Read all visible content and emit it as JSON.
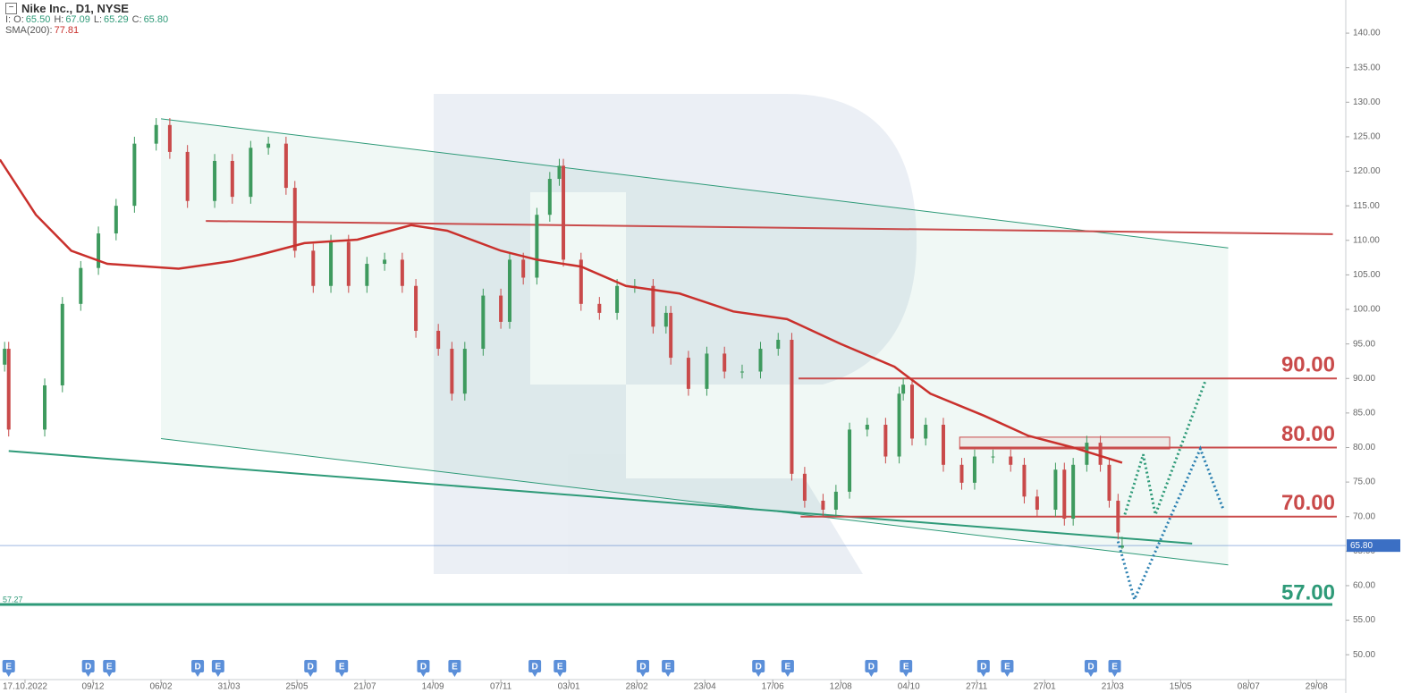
{
  "header": {
    "symbol": "Nike Inc., D1, NYSE",
    "ohlc": [
      {
        "label": "I: O:",
        "value": "65.50"
      },
      {
        "label": "H:",
        "value": "67.09"
      },
      {
        "label": "L:",
        "value": "65.29"
      },
      {
        "label": "C:",
        "value": "65.80"
      }
    ],
    "sma_label": "SMA(200):"
  },
  "chart_data": {
    "type": "candlestick",
    "xlim": [
      -0.368,
      19.43
    ],
    "xticks": [
      {
        "value": 0,
        "label": "17.10.2022"
      },
      {
        "value": 1,
        "label": "09/12"
      },
      {
        "value": 2,
        "label": "06/02"
      },
      {
        "value": 3,
        "label": "31/03"
      },
      {
        "value": 4,
        "label": "25/05"
      },
      {
        "value": 5,
        "label": "21/07"
      },
      {
        "value": 6,
        "label": "14/09"
      },
      {
        "value": 7,
        "label": "07/11"
      },
      {
        "value": 8,
        "label": "03/01"
      },
      {
        "value": 9,
        "label": "28/02"
      },
      {
        "value": 10,
        "label": "23/04"
      },
      {
        "value": 11,
        "label": "17/06"
      },
      {
        "value": 12,
        "label": "12/08"
      },
      {
        "value": 13,
        "label": "04/10"
      },
      {
        "value": 14,
        "label": "27/11"
      },
      {
        "value": 15,
        "label": "27/01"
      },
      {
        "value": 16,
        "label": "21/03"
      },
      {
        "value": 17,
        "label": "15/05"
      },
      {
        "value": 18,
        "label": "08/07"
      },
      {
        "value": 19,
        "label": "29/08"
      }
    ],
    "ylim": [
      46.4,
      144.8
    ],
    "yticks": [
      {
        "value": 50,
        "label": "50.00"
      },
      {
        "value": 55,
        "label": "55.00"
      },
      {
        "value": 60,
        "label": "60.00"
      },
      {
        "value": 65,
        "label": "65.00"
      },
      {
        "value": 70,
        "label": "70.00"
      },
      {
        "value": 75,
        "label": "75.00"
      },
      {
        "value": 80,
        "label": "80.00"
      },
      {
        "value": 85,
        "label": "85.00"
      },
      {
        "value": 90,
        "label": "90.00"
      },
      {
        "value": 95,
        "label": "95.00"
      },
      {
        "value": 100,
        "label": "100.00"
      },
      {
        "value": 105,
        "label": "105.00"
      },
      {
        "value": 110,
        "label": "110.00"
      },
      {
        "value": 115,
        "label": "115.00"
      },
      {
        "value": 120,
        "label": "120.00"
      },
      {
        "value": 125,
        "label": "125.00"
      },
      {
        "value": 130,
        "label": "130.00"
      },
      {
        "value": 135,
        "label": "135.00"
      },
      {
        "value": 140,
        "label": "140.00"
      }
    ],
    "up_color": "#3e9a5e",
    "down_color": "#c94a4a",
    "candles": {
      "x": [
        -0.3,
        -0.24,
        0.29,
        0.55,
        0.82,
        1.08,
        1.34,
        1.61,
        1.93,
        2.13,
        2.39,
        2.79,
        3.05,
        3.32,
        3.58,
        3.84,
        3.97,
        4.24,
        4.5,
        4.76,
        5.03,
        5.29,
        5.55,
        5.75,
        6.08,
        6.28,
        6.47,
        6.74,
        7.0,
        7.13,
        7.33,
        7.53,
        7.72,
        7.86,
        7.92,
        8.18,
        8.45,
        8.71,
        8.97,
        9.24,
        9.43,
        9.5,
        9.76,
        10.03,
        10.29,
        10.55,
        10.82,
        11.08,
        11.28,
        11.47,
        11.74,
        11.93,
        12.13,
        12.39,
        12.66,
        12.86,
        12.92,
        13.05,
        13.25,
        13.51,
        13.78,
        13.97,
        14.24,
        14.5,
        14.7,
        14.89,
        15.16,
        15.29,
        15.42,
        15.62,
        15.82,
        15.95,
        16.08,
        16.14
      ],
      "open": [
        92,
        94.3,
        82.6,
        89,
        100.8,
        106,
        111,
        115,
        124,
        126.7,
        122.8,
        115.7,
        121.5,
        116.3,
        123.4,
        124,
        117.6,
        108.5,
        103.4,
        109.8,
        103.4,
        106.6,
        107.2,
        103.4,
        96.9,
        94.3,
        87.8,
        94.3,
        102,
        98.2,
        107.2,
        104.6,
        113.7,
        118.9,
        120.8,
        107.2,
        100.8,
        99.5,
        103.4,
        103.4,
        97.5,
        99.5,
        93,
        88.5,
        93.6,
        91,
        91,
        94.3,
        95.6,
        76.2,
        72.3,
        71,
        73.6,
        82.6,
        83.3,
        78.7,
        87.8,
        89.1,
        81.3,
        83.3,
        77.5,
        74.9,
        78.7,
        78.7,
        77.5,
        72.9,
        71,
        76.8,
        69.7,
        77.5,
        80.7,
        77.5,
        72.3,
        65.5
      ],
      "high": [
        95.3,
        95.3,
        90,
        101.8,
        107,
        112,
        116,
        125,
        127.7,
        127.7,
        123.8,
        122.5,
        122.5,
        124.4,
        125,
        125,
        118.6,
        109.5,
        110.8,
        110.8,
        107.6,
        108.2,
        108.2,
        104.4,
        97.9,
        95.3,
        95.3,
        103,
        103,
        108.2,
        108.2,
        114.7,
        119.9,
        121.8,
        121.8,
        108.2,
        101.8,
        104.4,
        104.4,
        104.4,
        100.5,
        100.5,
        94,
        94.6,
        94.6,
        92,
        95.3,
        96.6,
        96.6,
        77.2,
        73.3,
        74.6,
        83.6,
        84.3,
        84.3,
        88.8,
        90.1,
        90.1,
        84.3,
        84.3,
        78.5,
        79.7,
        79.7,
        79.7,
        78.5,
        73.9,
        77.8,
        77.8,
        78.5,
        81.7,
        81.7,
        78.5,
        73.3,
        67.09
      ],
      "low": [
        91,
        81.6,
        81.6,
        88,
        99.8,
        105,
        110,
        114,
        123,
        121.8,
        114.7,
        114.7,
        115.3,
        115.3,
        122.4,
        116.6,
        107.5,
        102.4,
        102.4,
        102.4,
        102.4,
        105.6,
        102.4,
        95.9,
        93.3,
        86.8,
        86.8,
        93.3,
        97.2,
        97.2,
        103.6,
        103.6,
        112.7,
        117.9,
        106.2,
        99.8,
        98.5,
        98.5,
        102.4,
        96.5,
        96.5,
        92,
        87.5,
        87.5,
        90,
        90,
        90,
        93.3,
        75.2,
        71.3,
        70,
        70,
        72.6,
        81.6,
        77.7,
        77.7,
        86.8,
        80.3,
        80.3,
        76.5,
        73.9,
        73.9,
        77.7,
        76.5,
        71.9,
        70,
        70,
        68.7,
        68.7,
        76.5,
        76.5,
        71.3,
        66.7,
        65.29
      ],
      "close": [
        94.3,
        82.6,
        89,
        100.8,
        106,
        111,
        115,
        124,
        126.7,
        122.8,
        115.7,
        121.5,
        116.3,
        123.4,
        124,
        117.6,
        108.5,
        103.4,
        109.8,
        103.4,
        106.6,
        107.2,
        103.4,
        96.9,
        94.3,
        87.8,
        94.3,
        102,
        98.2,
        107.2,
        104.6,
        113.7,
        118.9,
        120.8,
        107.2,
        100.8,
        99.5,
        103.4,
        103.4,
        97.5,
        99.5,
        93,
        88.5,
        93.6,
        91,
        91,
        94.3,
        95.6,
        76.2,
        72.3,
        71,
        73.6,
        82.6,
        83.3,
        78.7,
        87.8,
        89.1,
        81.3,
        83.3,
        77.5,
        74.9,
        78.7,
        78.7,
        77.5,
        72.9,
        71,
        76.8,
        69.7,
        77.5,
        80.7,
        77.5,
        72.3,
        67.7,
        65.8
      ]
    },
    "sma": {
      "name": "SMA(200)",
      "color": "#c9302c",
      "x": [
        -0.37,
        0.16,
        0.68,
        1.21,
        2.26,
        3.05,
        3.45,
        4.11,
        4.89,
        5.68,
        6.21,
        7.0,
        7.53,
        8.18,
        8.84,
        9.63,
        10.42,
        11.21,
        12.0,
        12.79,
        13.32,
        14.11,
        14.76,
        15.42,
        16.14
      ],
      "values": [
        121.7,
        113.7,
        108.5,
        106.6,
        105.9,
        107,
        107.9,
        109.6,
        110.1,
        112.2,
        111.4,
        108.5,
        107.2,
        106.2,
        103.4,
        102.3,
        99.7,
        98.6,
        95,
        91.7,
        87.8,
        84.6,
        81.7,
        80,
        77.81
      ]
    },
    "channel": {
      "color": "#2e9a78",
      "upper": {
        "x": [
          2.0,
          17.7
        ],
        "y": [
          127.6,
          108.9
        ]
      },
      "lower": {
        "x": [
          2.0,
          17.7
        ],
        "y": [
          81.3,
          63
        ]
      }
    },
    "trendlines": [
      {
        "color": "#2e9a78",
        "x": [
          -0.24,
          17.17
        ],
        "y": [
          79.5,
          66.1
        ]
      },
      {
        "color": "#c94a4a",
        "x": [
          2.66,
          19.24
        ],
        "y": [
          112.8,
          110.9
        ]
      }
    ],
    "levels": [
      {
        "value": 90,
        "label": "90.00",
        "color": "#c94a4a",
        "x_start": 11.38
      },
      {
        "value": 80,
        "label": "80.00",
        "color": "#c94a4a",
        "x_start": 13.75
      },
      {
        "value": 70,
        "label": "70.00",
        "color": "#c94a4a",
        "x_start": 11.41
      },
      {
        "value": 57,
        "label": "57.00",
        "color": "#2e9a78",
        "x_start": 19.0
      }
    ],
    "support": {
      "value": 57.27,
      "label": "57.27",
      "color": "#2e9a78"
    },
    "zone": {
      "x": [
        13.75,
        16.84
      ],
      "y": [
        79.8,
        81.5
      ],
      "color": "#c94a4a"
    },
    "forecasts": [
      {
        "color": "#2e9a78",
        "x": [
          16.18,
          16.45,
          16.63,
          17.37
        ],
        "y": [
          70.3,
          79,
          70.3,
          89.8
        ]
      },
      {
        "color": "#2a7fb0",
        "x": [
          16.08,
          16.32,
          17.29,
          17.63
        ],
        "y": [
          66.4,
          58,
          79.8,
          71
        ]
      }
    ],
    "last_price": {
      "value": 65.8,
      "label": "65.80",
      "color": "#3b6fc4"
    },
    "events": {
      "color": "#5b8fd9",
      "x": [
        -0.24,
        0.93,
        1.24,
        2.54,
        2.84,
        4.2,
        4.66,
        5.86,
        6.32,
        7.5,
        7.87,
        9.09,
        9.46,
        10.79,
        11.22,
        12.45,
        12.96,
        14.1,
        14.45,
        15.68,
        16.03
      ],
      "labels": [
        "E",
        "D",
        "E",
        "D",
        "E",
        "D",
        "E",
        "D",
        "E",
        "D",
        "E",
        "D",
        "E",
        "D",
        "E",
        "D",
        "E",
        "D",
        "E",
        "D",
        "E"
      ]
    }
  }
}
